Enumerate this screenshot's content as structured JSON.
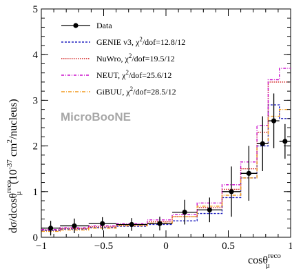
{
  "chart_data": {
    "type": "line",
    "xlabel": "cosθ",
    "xlabel_sup": "reco",
    "xlabel_sub": "μ",
    "ylabel": "dσ/dcosθ",
    "ylabel_sup": "reco",
    "ylabel_sub": "μ",
    "ylabel_units": "(10",
    "ylabel_units_exp": "-37",
    "ylabel_units_rest": "cm",
    "ylabel_units_exp2": "2",
    "ylabel_units_end": "/nucleus)",
    "xlim": [
      -1,
      1
    ],
    "ylim": [
      0,
      5
    ],
    "x_ticks": [
      -1,
      -0.5,
      0,
      0.5,
      1
    ],
    "x_tick_labels": [
      "−1",
      "−0.5",
      "0",
      "0.5",
      "1"
    ],
    "y_ticks": [
      0,
      1,
      2,
      3,
      4,
      5
    ],
    "y_tick_labels": [
      "0",
      "1",
      "2",
      "3",
      "4",
      "5"
    ],
    "watermark": "MicroBooNE",
    "bin_edges": [
      -1,
      -0.85,
      -0.62,
      -0.4,
      -0.15,
      0.05,
      0.25,
      0.45,
      0.6,
      0.73,
      0.82,
      0.91,
      1.0
    ],
    "data": {
      "name": "Data",
      "x": [
        -0.925,
        -0.735,
        -0.51,
        -0.275,
        -0.05,
        0.15,
        0.35,
        0.525,
        0.665,
        0.775,
        0.865,
        0.955
      ],
      "y": [
        0.2,
        0.25,
        0.3,
        0.28,
        0.3,
        0.55,
        0.6,
        1.0,
        1.4,
        2.05,
        2.55,
        2.1
      ],
      "err": [
        0.16,
        0.16,
        0.14,
        0.14,
        0.15,
        0.27,
        0.27,
        0.55,
        0.6,
        0.6,
        0.6,
        0.38
      ]
    },
    "series": [
      {
        "name": "GENIE v3, χ²/dof=12.8/12",
        "label_main": "GENIE v3, χ",
        "label_exp": "2",
        "label_rest": "/dof=12.8/12",
        "color": "#1f1fbf",
        "dash": "3,2",
        "values": [
          0.15,
          0.18,
          0.21,
          0.24,
          0.28,
          0.36,
          0.52,
          0.87,
          1.3,
          2.0,
          2.9,
          2.6
        ]
      },
      {
        "name": "NuWro, χ²/dof=19.5/12",
        "label_main": "NuWro, χ",
        "label_exp": "2",
        "label_rest": "/dof=19.5/12",
        "color": "#d11a1a",
        "dash": "1.5,1.5",
        "values": [
          0.16,
          0.19,
          0.23,
          0.27,
          0.34,
          0.45,
          0.65,
          1.05,
          1.5,
          2.3,
          3.4,
          3.4
        ]
      },
      {
        "name": "NEUT, χ²/dof=25.6/12",
        "label_main": "NEUT, χ",
        "label_exp": "2",
        "label_rest": "/dof=25.6/12",
        "color": "#cc11cc",
        "dash": "4,2,1,2",
        "values": [
          0.17,
          0.21,
          0.25,
          0.3,
          0.38,
          0.5,
          0.75,
          1.15,
          1.65,
          2.45,
          3.45,
          3.7
        ]
      },
      {
        "name": "GiBUU, χ²/dof=28.5/12",
        "label_main": "GiBUU, χ",
        "label_exp": "2",
        "label_rest": "/dof=28.5/12",
        "color": "#f29a1e",
        "dash": "5,2,1,2",
        "values": [
          0.13,
          0.16,
          0.2,
          0.25,
          0.31,
          0.45,
          0.68,
          0.92,
          1.3,
          2.05,
          2.65,
          2.8
        ]
      }
    ],
    "legend_position": "top-left"
  }
}
